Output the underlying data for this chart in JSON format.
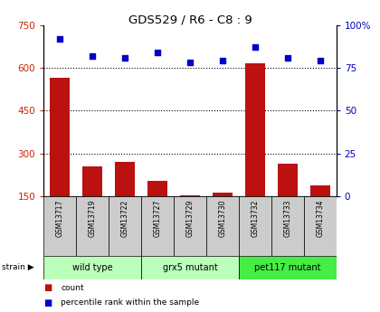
{
  "title": "GDS529 / R6 - C8 : 9",
  "samples": [
    "GSM13717",
    "GSM13719",
    "GSM13722",
    "GSM13727",
    "GSM13729",
    "GSM13730",
    "GSM13732",
    "GSM13733",
    "GSM13734"
  ],
  "counts": [
    565,
    255,
    270,
    205,
    155,
    165,
    615,
    265,
    190
  ],
  "percentile_ranks": [
    92,
    82,
    81,
    84,
    78,
    79,
    87,
    81,
    79
  ],
  "ylim_left": [
    150,
    750
  ],
  "ylim_right": [
    0,
    100
  ],
  "yticks_left": [
    150,
    300,
    450,
    600,
    750
  ],
  "yticks_right": [
    0,
    25,
    50,
    75,
    100
  ],
  "ytick_right_labels": [
    "0",
    "25",
    "50",
    "75",
    "100%"
  ],
  "bar_color": "#bb1111",
  "dot_color": "#0000cc",
  "sample_bg_color": "#cccccc",
  "group_defs": [
    {
      "label": "wild type",
      "start": 0,
      "end": 2,
      "color": "#bbffbb"
    },
    {
      "label": "grx5 mutant",
      "start": 3,
      "end": 5,
      "color": "#bbffbb"
    },
    {
      "label": "pet117 mutant",
      "start": 6,
      "end": 8,
      "color": "#44ee44"
    }
  ],
  "legend_count": "count",
  "legend_percentile": "percentile rank within the sample",
  "grid_yticks": [
    300,
    450,
    600
  ],
  "left_axis_color": "#cc2200",
  "right_axis_color": "#0000bb"
}
